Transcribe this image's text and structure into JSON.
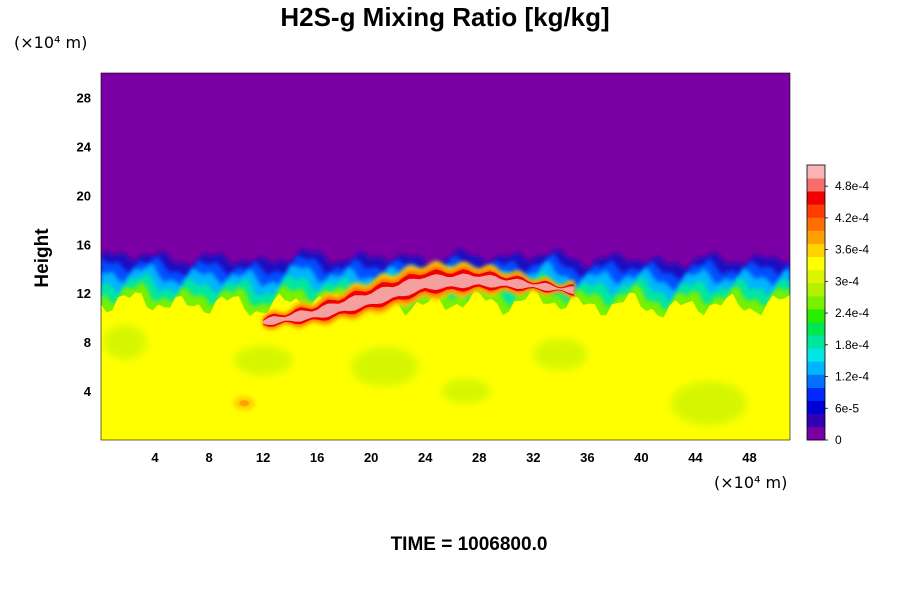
{
  "chart_data": {
    "type": "heatmap",
    "title": "H2S-g Mixing Ratio [kg/kg]",
    "xlabel": "",
    "ylabel": "Height",
    "x_unit": "(×10⁴ m)",
    "y_unit": "(×10⁴ m)",
    "xlim": [
      0,
      51
    ],
    "ylim": [
      0,
      30
    ],
    "x_ticks": [
      4,
      8,
      12,
      16,
      20,
      24,
      28,
      32,
      36,
      40,
      44,
      48
    ],
    "y_ticks": [
      4,
      8,
      12,
      16,
      20,
      24,
      28
    ],
    "colorbar": {
      "min": 0,
      "max": 0.00052,
      "tick_values": [
        0,
        6e-05,
        0.00012,
        0.00018,
        0.00024,
        0.0003,
        0.00036,
        0.00042,
        0.00048
      ],
      "tick_labels": [
        "0",
        "6e-5",
        "1.2e-4",
        "1.8e-4",
        "2.4e-4",
        "3e-4",
        "3.6e-4",
        "4.2e-4",
        "4.8e-4"
      ],
      "colors": [
        "#7a00a5",
        "#3200b5",
        "#0000d2",
        "#0028ff",
        "#0070ff",
        "#00b4ff",
        "#00e6e6",
        "#00e6a0",
        "#00e650",
        "#28ee00",
        "#78f000",
        "#b4f000",
        "#dcf500",
        "#ffff00",
        "#ffd200",
        "#ffa000",
        "#ff6e00",
        "#ff3c00",
        "#f00000",
        "#f56e6e",
        "#fab4b4"
      ]
    },
    "field_summary": {
      "upper_layer_value": 0,
      "lower_layer_value": 0.000335,
      "interface_height": [
        [
          0,
          14.5
        ],
        [
          3,
          14.8
        ],
        [
          6,
          14.2
        ],
        [
          9,
          14.6
        ],
        [
          12,
          14.0
        ],
        [
          15,
          14.9
        ],
        [
          18,
          14.3
        ],
        [
          21,
          14.7
        ],
        [
          24,
          14.2
        ],
        [
          27,
          14.8
        ],
        [
          30,
          14.4
        ],
        [
          33,
          14.9
        ],
        [
          36,
          14.1
        ],
        [
          39,
          14.6
        ],
        [
          42,
          13.9
        ],
        [
          45,
          14.5
        ],
        [
          48,
          14.2
        ],
        [
          51,
          14.6
        ]
      ],
      "plume_core": [
        [
          12,
          9.6
        ],
        [
          16,
          10.3
        ],
        [
          20,
          11.5
        ],
        [
          24,
          12.8
        ],
        [
          28,
          13.0
        ],
        [
          32,
          12.6
        ],
        [
          35,
          12.2
        ]
      ]
    },
    "time_label": "TIME = 1006800.0"
  }
}
